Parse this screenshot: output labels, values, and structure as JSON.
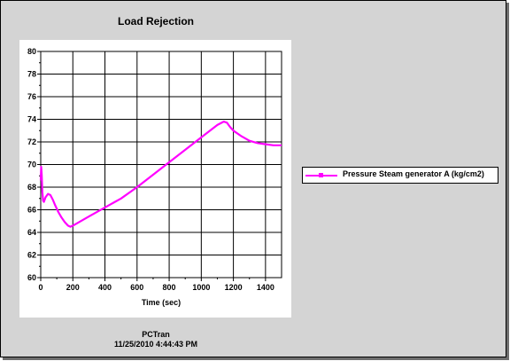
{
  "window": {
    "frame_color": "#d4d4d4",
    "footer_line1": "PCTran",
    "footer_line2": "11/25/2010 4:44:43 PM"
  },
  "chart_data": {
    "type": "line",
    "title": "Load Rejection",
    "xlabel": "Time (sec)",
    "ylabel": "",
    "xlim": [
      0,
      1500
    ],
    "ylim": [
      60,
      80
    ],
    "xticks": [
      0,
      200,
      400,
      600,
      800,
      1000,
      1200,
      1400
    ],
    "yticks": [
      60,
      62,
      64,
      66,
      68,
      70,
      72,
      74,
      76,
      78,
      80
    ],
    "grid": true,
    "legend_position": "right",
    "series": [
      {
        "name": "Pressure Steam generator A (kg/cm2)",
        "color": "#ff00ff",
        "x": [
          0,
          3,
          6,
          10,
          15,
          20,
          30,
          45,
          60,
          75,
          90,
          110,
          130,
          150,
          170,
          185,
          200,
          300,
          400,
          500,
          600,
          700,
          800,
          900,
          1000,
          1100,
          1140,
          1160,
          1180,
          1200,
          1250,
          1300,
          1350,
          1400,
          1450,
          1500
        ],
        "y": [
          68.6,
          69.8,
          69.1,
          67.6,
          66.8,
          66.7,
          67.1,
          67.4,
          67.3,
          66.9,
          66.4,
          65.8,
          65.3,
          64.9,
          64.6,
          64.5,
          64.6,
          65.4,
          66.2,
          67.0,
          68.0,
          69.1,
          70.2,
          71.3,
          72.4,
          73.5,
          73.8,
          73.7,
          73.3,
          73.0,
          72.5,
          72.1,
          71.9,
          71.8,
          71.7,
          71.7
        ]
      }
    ]
  }
}
